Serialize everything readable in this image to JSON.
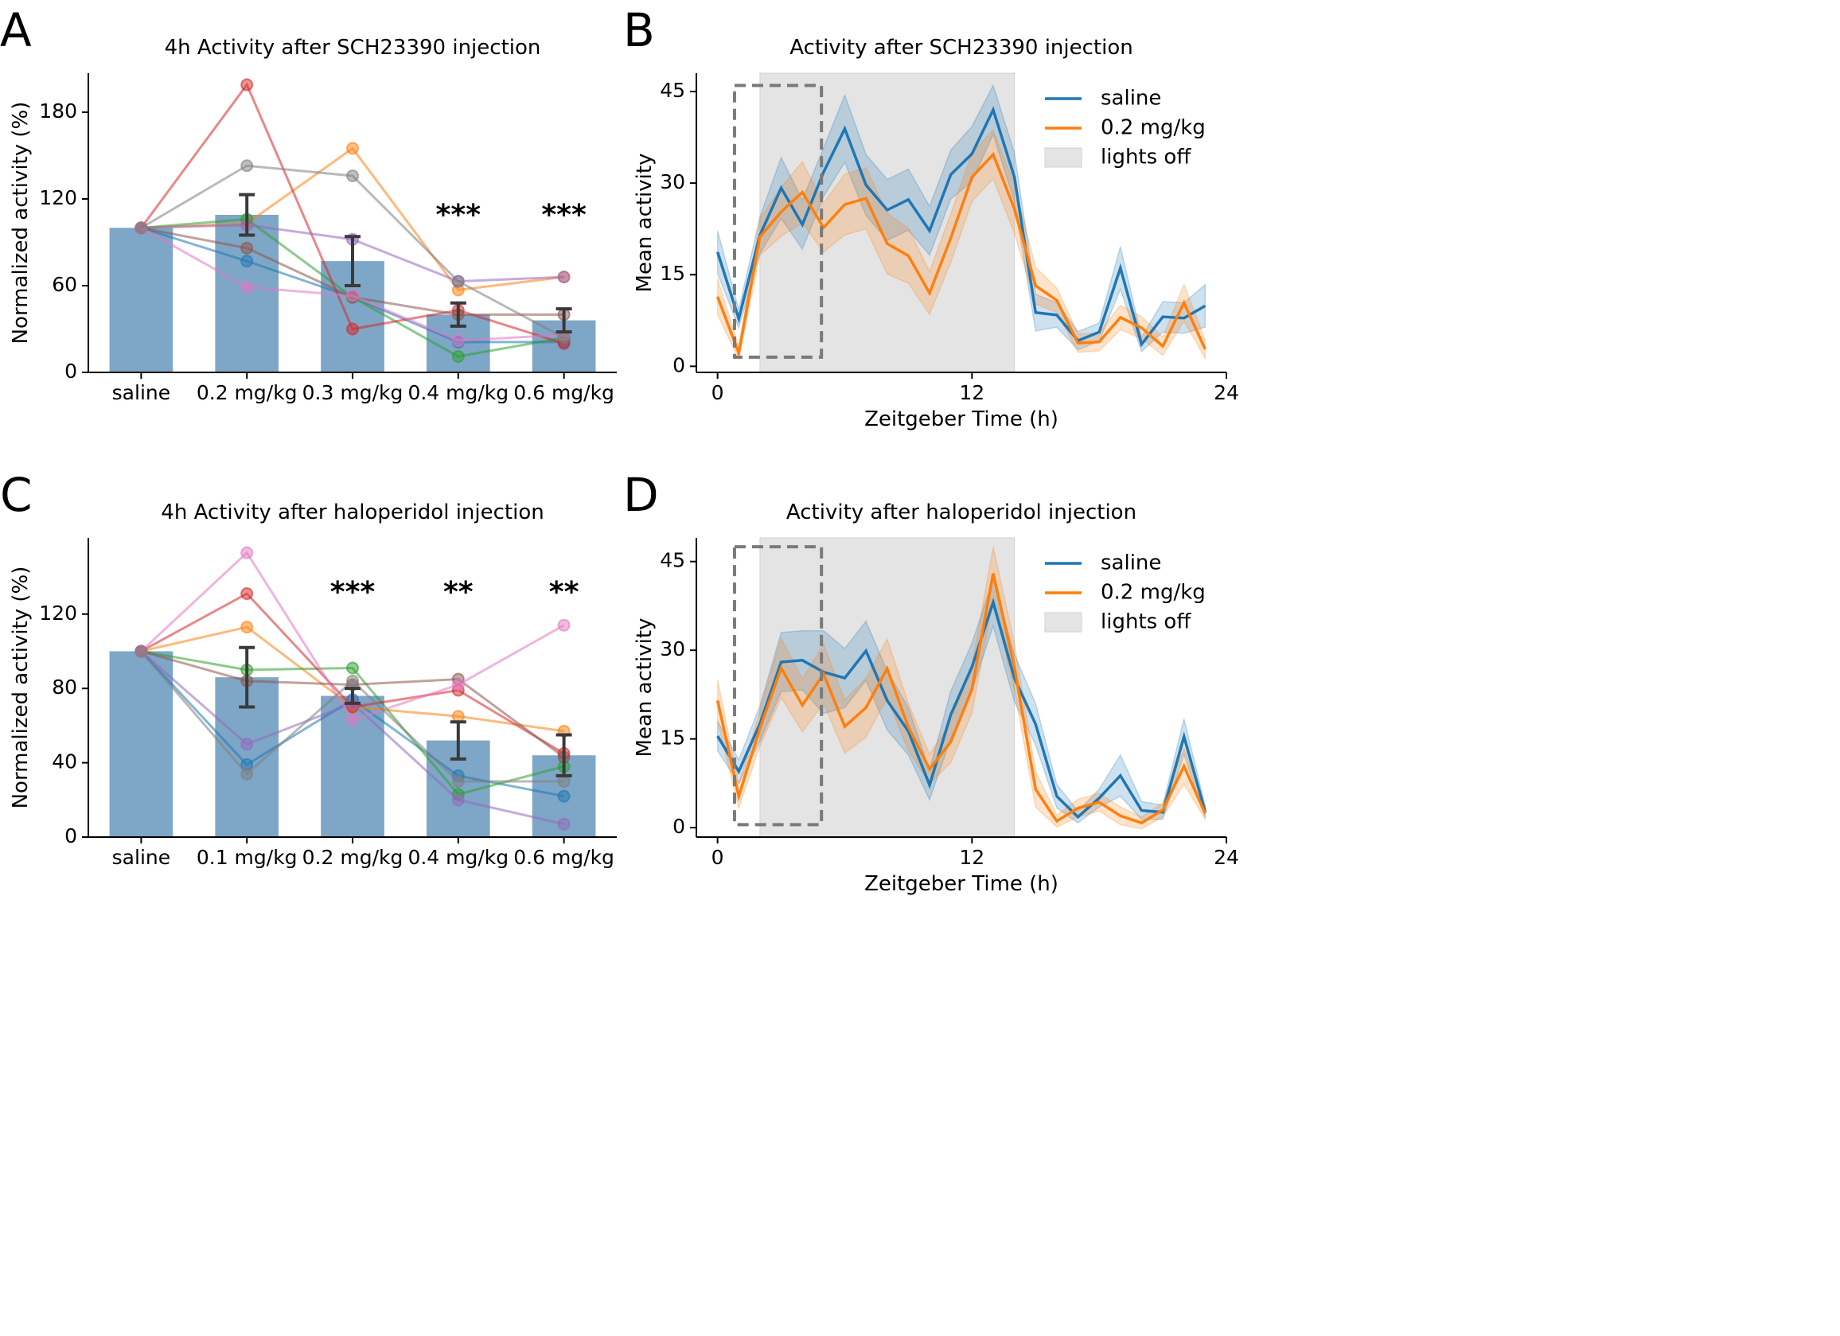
{
  "figure": {
    "panel_letters": [
      "A",
      "B",
      "C",
      "D"
    ]
  },
  "chart_data": [
    {
      "panel": "A",
      "type": "bar",
      "title": "4h Activity after SCH23390 injection",
      "ylabel": "Normalized activity (%)",
      "xlabel": "",
      "ylim": [
        0,
        207
      ],
      "yticks": [
        0,
        60,
        120,
        180
      ],
      "categories": [
        "saline",
        "0.2 mg/kg",
        "0.3 mg/kg",
        "0.4 mg/kg",
        "0.6 mg/kg"
      ],
      "values": [
        100,
        109,
        77,
        40,
        36
      ],
      "errors": [
        0,
        14,
        17,
        8,
        8
      ],
      "significance": [
        "",
        "",
        "",
        "***",
        "***"
      ],
      "bar_color": "#7ea6c6",
      "individuals": [
        {
          "color": "#1f77b4",
          "values": [
            100,
            77,
            52,
            21,
            21
          ]
        },
        {
          "color": "#ff7f0e",
          "values": [
            100,
            103,
            155,
            57,
            66
          ]
        },
        {
          "color": "#2ca02c",
          "values": [
            100,
            106,
            52,
            11,
            24
          ]
        },
        {
          "color": "#d62728",
          "values": [
            100,
            199,
            30,
            43,
            20
          ]
        },
        {
          "color": "#9467bd",
          "values": [
            100,
            102,
            92,
            63,
            66
          ]
        },
        {
          "color": "#8c564b",
          "values": [
            100,
            86,
            52,
            40,
            40
          ]
        },
        {
          "color": "#e377c2",
          "values": [
            100,
            59,
            53,
            22,
            26
          ]
        },
        {
          "color": "#7f7f7f",
          "values": [
            100,
            143,
            136,
            63,
            24
          ]
        }
      ]
    },
    {
      "panel": "B",
      "type": "line",
      "title": "Activity after SCH23390 injection",
      "xlabel": "Zeitgeber Time (h)",
      "ylabel": "Mean activity",
      "xlim": [
        -1,
        24
      ],
      "ylim": [
        -1,
        48
      ],
      "xticks": [
        0,
        12,
        24
      ],
      "yticks": [
        0,
        15,
        30,
        45
      ],
      "lights_off": [
        2,
        14
      ],
      "dashed_box": {
        "x": [
          0.8,
          4.9
        ],
        "y": [
          1.5,
          46
        ]
      },
      "legend": [
        "saline",
        "0.2 mg/kg",
        "lights off"
      ],
      "legend_position": "top-right",
      "x": [
        0,
        1,
        2,
        3,
        4,
        5,
        6,
        7,
        8,
        9,
        10,
        11,
        12,
        13,
        14,
        15,
        16,
        17,
        18,
        19,
        20,
        21,
        22,
        23
      ],
      "series": [
        {
          "name": "saline",
          "color": "#1f77b4",
          "values": [
            18.7,
            7.8,
            21.5,
            29.2,
            23.2,
            31.8,
            38.9,
            29.7,
            25.6,
            27.3,
            22.2,
            31.4,
            34.8,
            42.0,
            31.0,
            8.8,
            8.4,
            4.2,
            5.6,
            16.1,
            3.6,
            8.1,
            7.9,
            9.9
          ],
          "spread": [
            3.5,
            1.5,
            3,
            5,
            4,
            4,
            5.5,
            5,
            5,
            5,
            4,
            4,
            4.5,
            4,
            4,
            3,
            2,
            1.5,
            1.5,
            3.5,
            1.2,
            2.5,
            2.5,
            3.5
          ]
        },
        {
          "name": "0.2 mg/kg",
          "color": "#ff7f0e",
          "values": [
            11.4,
            2.2,
            21.2,
            25.3,
            28.5,
            22.7,
            26.5,
            27.5,
            20.1,
            18.1,
            12.0,
            21.0,
            31.0,
            34.7,
            25.8,
            13.2,
            10.8,
            3.8,
            4.0,
            8.0,
            6.3,
            3.3,
            10.4,
            2.8
          ],
          "spread": [
            3,
            1,
            3,
            4,
            5,
            4,
            5,
            5,
            5,
            4.5,
            3.5,
            4,
            4,
            4,
            4,
            3,
            2,
            1.5,
            1.5,
            2,
            1.8,
            1.5,
            3,
            1.5
          ]
        }
      ]
    },
    {
      "panel": "C",
      "type": "bar",
      "title": "4h Activity after haloperidol injection",
      "ylabel": "Normalized activity (%)",
      "xlabel": "",
      "ylim": [
        0,
        161
      ],
      "yticks": [
        0,
        40,
        80,
        120
      ],
      "categories": [
        "saline",
        "0.1 mg/kg",
        "0.2 mg/kg",
        "0.4 mg/kg",
        "0.6 mg/kg"
      ],
      "values": [
        100,
        86,
        76,
        52,
        44
      ],
      "errors": [
        0,
        16,
        4,
        10,
        11
      ],
      "significance": [
        "",
        "",
        "***",
        "**",
        "**"
      ],
      "bar_color": "#7ea6c6",
      "individuals": [
        {
          "color": "#1f77b4",
          "values": [
            100,
            39,
            74,
            33,
            22
          ]
        },
        {
          "color": "#ff7f0e",
          "values": [
            100,
            113,
            70,
            65,
            57
          ]
        },
        {
          "color": "#2ca02c",
          "values": [
            100,
            90,
            91,
            23,
            38
          ]
        },
        {
          "color": "#d62728",
          "values": [
            100,
            131,
            70,
            79,
            45
          ]
        },
        {
          "color": "#9467bd",
          "values": [
            100,
            50,
            72,
            20,
            7
          ]
        },
        {
          "color": "#8c564b",
          "values": [
            100,
            84,
            82,
            85,
            43
          ]
        },
        {
          "color": "#e377c2",
          "values": [
            100,
            153,
            63,
            82,
            114
          ]
        },
        {
          "color": "#7f7f7f",
          "values": [
            100,
            34,
            84,
            30,
            30
          ]
        }
      ]
    },
    {
      "panel": "D",
      "type": "line",
      "title": "Activity after haloperidol injection",
      "xlabel": "Zeitgeber Time (h)",
      "ylabel": "Mean activity",
      "xlim": [
        -1,
        24
      ],
      "ylim": [
        -1.6,
        49
      ],
      "xticks": [
        0,
        12,
        24
      ],
      "yticks": [
        0,
        15,
        30,
        45
      ],
      "lights_off": [
        2,
        14
      ],
      "dashed_box": {
        "x": [
          0.8,
          4.9
        ],
        "y": [
          0.5,
          47.5
        ]
      },
      "legend": [
        "saline",
        "0.2 mg/kg",
        "lights off"
      ],
      "legend_position": "top-right",
      "x": [
        0,
        1,
        2,
        3,
        4,
        5,
        6,
        7,
        8,
        9,
        10,
        11,
        12,
        13,
        14,
        15,
        16,
        17,
        18,
        19,
        20,
        21,
        22,
        23
      ],
      "series": [
        {
          "name": "saline",
          "color": "#1f77b4",
          "values": [
            15.5,
            9.5,
            17.6,
            28.0,
            28.3,
            26.3,
            25.3,
            29.9,
            21.5,
            16.3,
            7.2,
            19.1,
            27.2,
            38.1,
            25.3,
            17.5,
            5.3,
            1.8,
            5.0,
            8.8,
            2.9,
            2.6,
            15.4,
            2.7
          ],
          "spread": [
            2.5,
            2,
            3,
            5,
            5,
            7,
            5,
            5,
            5,
            4,
            2.5,
            4,
            4,
            4,
            4,
            3.5,
            2,
            1,
            1.5,
            3.5,
            1.5,
            1.2,
            3,
            1
          ]
        },
        {
          "name": "0.2 mg/kg",
          "color": "#ff7f0e",
          "values": [
            21.5,
            5.3,
            16.8,
            27.0,
            20.7,
            26.0,
            17.1,
            20.3,
            26.9,
            17.0,
            9.9,
            14.5,
            23.4,
            43.0,
            27.2,
            6.5,
            1.1,
            3.3,
            4.3,
            2.0,
            0.8,
            3.0,
            10.4,
            2.4
          ],
          "spread": [
            3.5,
            2,
            3,
            5,
            4.5,
            5,
            4.5,
            5,
            5,
            4,
            2.5,
            3.5,
            4,
            4.5,
            4,
            3,
            1,
            1.5,
            1.5,
            1.5,
            1,
            1.2,
            3,
            1
          ]
        }
      ]
    }
  ]
}
